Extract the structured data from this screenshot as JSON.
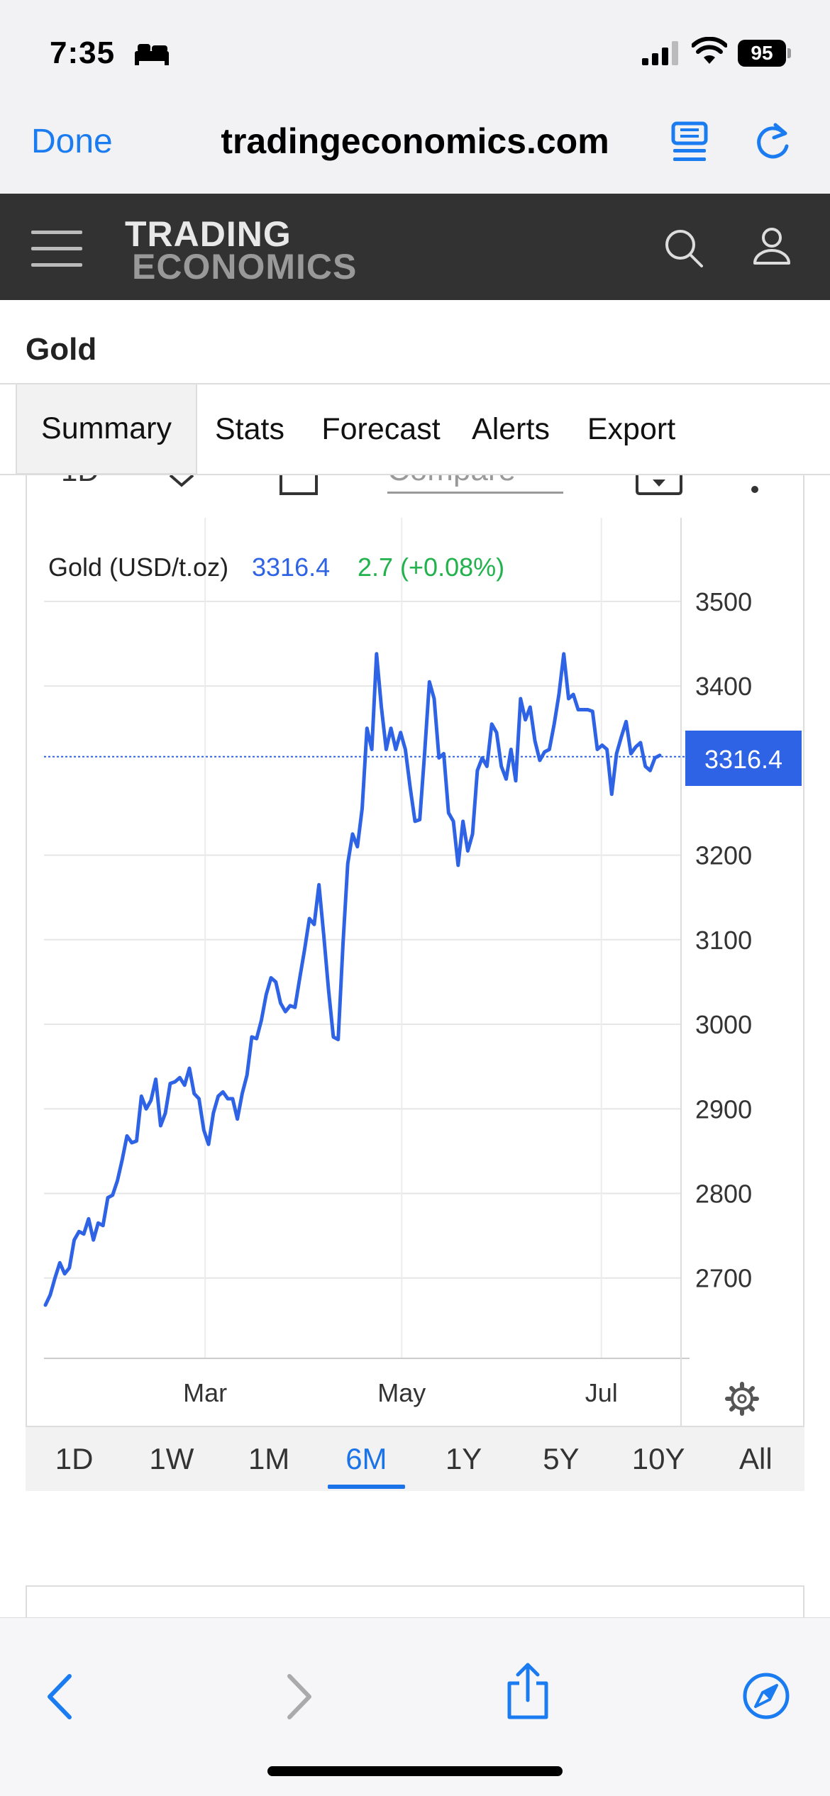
{
  "status": {
    "time": "7:35",
    "battery": "95"
  },
  "browser": {
    "done_label": "Done",
    "url": "tradingeconomics.com"
  },
  "site": {
    "logo_line1": "TRADING",
    "logo_line2": "ECONOMICS"
  },
  "page": {
    "title": "Gold"
  },
  "tabs": [
    "Summary",
    "Stats",
    "Forecast",
    "Alerts",
    "Export"
  ],
  "toolbar": {
    "range_partial": "1D",
    "compare_placeholder": "Compare"
  },
  "chart_data": {
    "type": "line",
    "series": [
      {
        "name": "Gold (USD/t.oz)",
        "color": "#2e63e6"
      }
    ],
    "price": "3316.4",
    "change": "2.7 (+0.08%)",
    "current_value": 3316.4,
    "ylim": [
      2605,
      3515
    ],
    "yticks": [
      3500,
      3400,
      3200,
      3100,
      3000,
      2900,
      2800,
      2700
    ],
    "xticks": [
      {
        "label": "Mar",
        "t": 0.26
      },
      {
        "label": "May",
        "t": 0.58
      },
      {
        "label": "Jul",
        "t": 0.905
      }
    ],
    "values": [
      2668,
      2680,
      2700,
      2718,
      2705,
      2712,
      2745,
      2755,
      2752,
      2770,
      2745,
      2765,
      2762,
      2795,
      2798,
      2815,
      2840,
      2868,
      2860,
      2862,
      2915,
      2900,
      2910,
      2935,
      2880,
      2895,
      2930,
      2932,
      2937,
      2928,
      2948,
      2918,
      2912,
      2875,
      2858,
      2895,
      2915,
      2920,
      2912,
      2912,
      2888,
      2918,
      2940,
      2985,
      2983,
      3005,
      3035,
      3055,
      3050,
      3025,
      3015,
      3022,
      3020,
      3055,
      3088,
      3125,
      3118,
      3165,
      3105,
      3040,
      2985,
      2982,
      3095,
      3190,
      3225,
      3210,
      3255,
      3350,
      3325,
      3438,
      3375,
      3325,
      3350,
      3325,
      3345,
      3325,
      3280,
      3240,
      3242,
      3320,
      3405,
      3385,
      3315,
      3320,
      3250,
      3240,
      3188,
      3240,
      3205,
      3225,
      3300,
      3315,
      3305,
      3355,
      3345,
      3305,
      3290,
      3325,
      3288,
      3385,
      3360,
      3375,
      3335,
      3312,
      3322,
      3325,
      3355,
      3390,
      3438,
      3385,
      3390,
      3372,
      3372,
      3372,
      3370,
      3325,
      3330,
      3325,
      3272,
      3320,
      3340,
      3358,
      3320,
      3328,
      3333,
      3305,
      3300,
      3315,
      3318
    ]
  },
  "range_buttons": [
    "1D",
    "1W",
    "1M",
    "6M",
    "1Y",
    "5Y",
    "10Y",
    "All"
  ],
  "active_range": "6M"
}
